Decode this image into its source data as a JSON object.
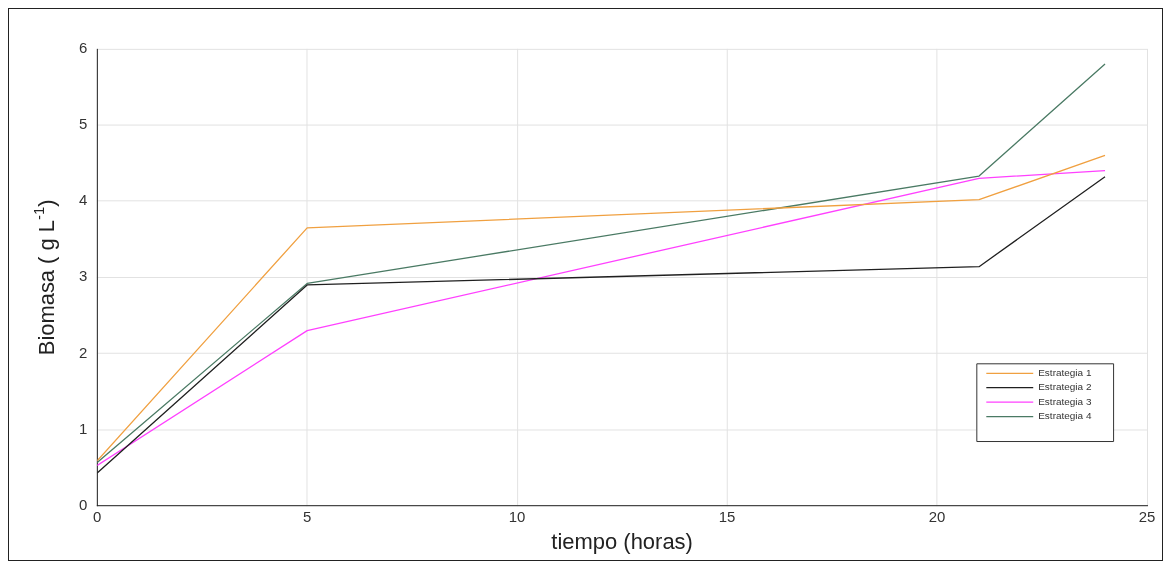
{
  "chart_data": {
    "type": "line",
    "xlabel": "tiempo (horas)",
    "ylabel": "Biomasa ( g L$^{-1}$)",
    "x": [
      0,
      5,
      21,
      24
    ],
    "series": [
      {
        "name": "Estrategia 1",
        "color": "#f0a040",
        "values": [
          0.59,
          3.65,
          4.02,
          4.6
        ]
      },
      {
        "name": "Estrategia 2",
        "color": "#202020",
        "values": [
          0.43,
          2.9,
          3.14,
          4.32
        ]
      },
      {
        "name": "Estrategia 3",
        "color": "#ff40ff",
        "values": [
          0.53,
          2.3,
          4.3,
          4.4
        ]
      },
      {
        "name": "Estrategia 4",
        "color": "#4a7a64",
        "values": [
          0.57,
          2.92,
          4.33,
          5.8
        ]
      }
    ],
    "xlim": [
      0,
      25
    ],
    "xticks": [
      0,
      5,
      10,
      15,
      20,
      25
    ],
    "ylim": [
      0,
      6
    ],
    "yticks": [
      0,
      1,
      2,
      3,
      4,
      5,
      6
    ],
    "grid": true,
    "legend": "bottom right",
    "marker": "none",
    "line_style": "solid"
  }
}
